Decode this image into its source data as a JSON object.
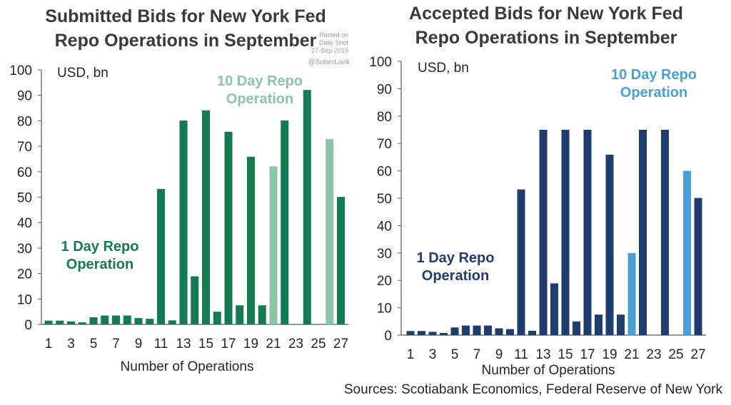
{
  "watermark": {
    "posted": [
      "Posted on",
      "Daily Shot",
      "27-Sep-2019"
    ],
    "handle": "@SoberLook"
  },
  "source": "Sources: Scotiabank Economics, Federal Reserve of New York",
  "colors": {
    "submitted_1day": "#137a52",
    "submitted_10day": "#8cc4a4",
    "accepted_1day": "#1f3d6e",
    "accepted_10day": "#4aa0d4",
    "axis": "#595959",
    "text": "#262626"
  },
  "chart_data": [
    {
      "type": "bar",
      "title": [
        "Submitted Bids for New York Fed",
        "Repo Operations in September"
      ],
      "unit_label": "USD, bn",
      "xlabel": "Number of Operations",
      "ylabel": "",
      "ylim": [
        0,
        100
      ],
      "yticks": [
        "0",
        "10",
        "20",
        "30",
        "40",
        "50",
        "60",
        "70",
        "80",
        "90",
        "100"
      ],
      "xticks": [
        "1",
        "3",
        "5",
        "7",
        "9",
        "11",
        "13",
        "15",
        "17",
        "19",
        "21",
        "23",
        "25",
        "27"
      ],
      "categories": [
        "1",
        "2",
        "3",
        "4",
        "5",
        "6",
        "7",
        "8",
        "9",
        "10",
        "11",
        "12",
        "13",
        "14",
        "15",
        "16",
        "17",
        "18",
        "19",
        "20",
        "21",
        "22",
        "23",
        "24",
        "25",
        "26",
        "27"
      ],
      "values": [
        1.5,
        1.5,
        1.2,
        0.8,
        2.8,
        3.5,
        3.5,
        3.5,
        2.5,
        2.2,
        53.2,
        1.6,
        80.1,
        18.9,
        84.1,
        5.0,
        75.7,
        7.5,
        65.9,
        7.5,
        62.1,
        80.1,
        0,
        92.1,
        0,
        72.8,
        50.1
      ],
      "series_type": [
        "1d",
        "1d",
        "1d",
        "1d",
        "1d",
        "1d",
        "1d",
        "1d",
        "1d",
        "1d",
        "1d",
        "1d",
        "1d",
        "1d",
        "1d",
        "1d",
        "1d",
        "1d",
        "1d",
        "1d",
        "10d",
        "1d",
        "1d",
        "1d",
        "1d",
        "10d",
        "1d"
      ],
      "annotations": [
        {
          "text": [
            "1 Day Repo",
            "Operation"
          ],
          "series": "1d"
        },
        {
          "text": [
            "10 Day Repo",
            "Operation"
          ],
          "series": "10d"
        }
      ],
      "grid": false
    },
    {
      "type": "bar",
      "title": [
        "Accepted Bids for New York Fed",
        "Repo Operations in September"
      ],
      "unit_label": "USD, bn",
      "xlabel": "Number of Operations",
      "ylabel": "",
      "ylim": [
        0,
        100
      ],
      "yticks": [
        "0",
        "10",
        "20",
        "30",
        "40",
        "50",
        "60",
        "70",
        "80",
        "90",
        "100"
      ],
      "xticks": [
        "1",
        "3",
        "5",
        "7",
        "9",
        "11",
        "13",
        "15",
        "17",
        "19",
        "21",
        "23",
        "25",
        "27"
      ],
      "categories": [
        "1",
        "2",
        "3",
        "4",
        "5",
        "6",
        "7",
        "8",
        "9",
        "10",
        "11",
        "12",
        "13",
        "14",
        "15",
        "16",
        "17",
        "18",
        "19",
        "20",
        "21",
        "22",
        "23",
        "24",
        "25",
        "26",
        "27"
      ],
      "values": [
        1.5,
        1.5,
        1.2,
        0.8,
        2.8,
        3.5,
        3.5,
        3.5,
        2.5,
        2.2,
        53.2,
        1.6,
        75,
        18.9,
        75,
        5.0,
        75,
        7.5,
        65.9,
        7.5,
        30,
        75,
        0,
        75,
        0,
        60,
        50.1
      ],
      "series_type": [
        "1d",
        "1d",
        "1d",
        "1d",
        "1d",
        "1d",
        "1d",
        "1d",
        "1d",
        "1d",
        "1d",
        "1d",
        "1d",
        "1d",
        "1d",
        "1d",
        "1d",
        "1d",
        "1d",
        "1d",
        "10d",
        "1d",
        "1d",
        "1d",
        "1d",
        "10d",
        "1d"
      ],
      "annotations": [
        {
          "text": [
            "1 Day Repo",
            "Operation"
          ],
          "series": "1d"
        },
        {
          "text": [
            "10 Day Repo",
            "Operation"
          ],
          "series": "10d"
        }
      ],
      "grid": false
    }
  ]
}
